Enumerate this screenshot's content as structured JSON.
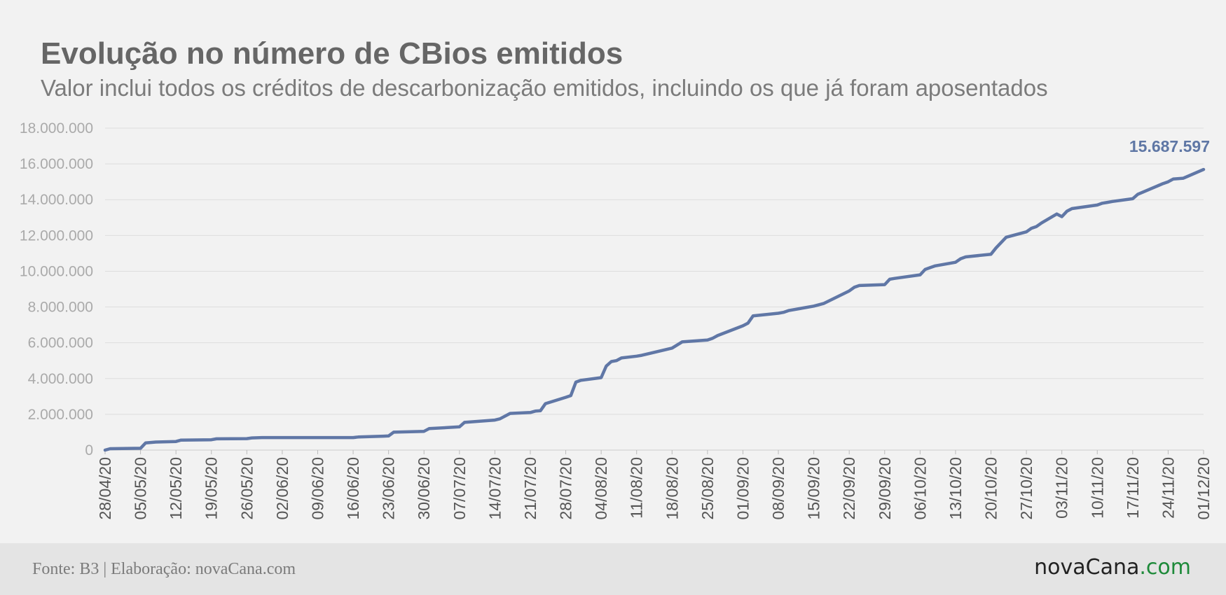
{
  "header": {
    "title": "Evolução no número de CBios emitidos",
    "subtitle": "Valor inclui todos os créditos de descarbonização emitidos, incluindo os que já foram aposentados"
  },
  "footer": {
    "source": "Fonte: B3 | Elaboração: novaCana.com",
    "logo_main": "novaCana",
    "logo_suffix": ".com"
  },
  "chart_data": {
    "type": "line",
    "title": "Evolução no número de CBios emitidos",
    "subtitle": "Valor inclui todos os créditos de descarbonização emitidos, incluindo os que já foram aposentados",
    "xlabel": "",
    "ylabel": "",
    "ylim": [
      0,
      18000000
    ],
    "yticks": [
      "0",
      "2.000.000",
      "4.000.000",
      "6.000.000",
      "8.000.000",
      "10.000.000",
      "12.000.000",
      "14.000.000",
      "16.000.000",
      "18.000.000"
    ],
    "xticks": [
      "28/04/20",
      "05/05/20",
      "12/05/20",
      "19/05/20",
      "26/05/20",
      "02/06/20",
      "09/06/20",
      "16/06/20",
      "23/06/20",
      "30/06/20",
      "07/07/20",
      "14/07/20",
      "21/07/20",
      "28/07/20",
      "04/08/20",
      "11/08/20",
      "18/08/20",
      "25/08/20",
      "01/09/20",
      "08/09/20",
      "15/09/20",
      "22/09/20",
      "29/09/20",
      "06/10/20",
      "13/10/20",
      "20/10/20",
      "27/10/20",
      "03/11/20",
      "10/11/20",
      "17/11/20",
      "24/11/20",
      "01/12/20"
    ],
    "grid": true,
    "line_color": "#6077a6",
    "end_label": "15.687.597",
    "series": [
      {
        "x": [
          "28/04/20",
          "29/04/20",
          "05/05/20",
          "06/05/20",
          "08/05/20",
          "12/05/20",
          "13/05/20",
          "19/05/20",
          "20/05/20",
          "26/05/20",
          "27/05/20",
          "29/05/20",
          "16/06/20",
          "17/06/20",
          "22/06/20",
          "23/06/20",
          "24/06/20",
          "30/06/20",
          "01/07/20",
          "07/07/20",
          "08/07/20",
          "14/07/20",
          "15/07/20",
          "17/07/20",
          "21/07/20",
          "22/07/20",
          "23/07/20",
          "24/07/20",
          "28/07/20",
          "29/07/20",
          "30/07/20",
          "31/07/20",
          "04/08/20",
          "05/08/20",
          "06/08/20",
          "07/08/20",
          "08/08/20",
          "11/08/20",
          "12/08/20",
          "18/08/20",
          "20/08/20",
          "25/08/20",
          "26/08/20",
          "27/08/20",
          "01/09/20",
          "02/09/20",
          "03/09/20",
          "08/09/20",
          "09/09/20",
          "10/09/20",
          "15/09/20",
          "17/09/20",
          "22/09/20",
          "23/09/20",
          "24/09/20",
          "29/09/20",
          "30/09/20",
          "01/10/20",
          "06/10/20",
          "07/10/20",
          "08/10/20",
          "09/10/20",
          "13/10/20",
          "14/10/20",
          "15/10/20",
          "20/10/20",
          "21/10/20",
          "23/10/20",
          "27/10/20",
          "28/10/20",
          "29/10/20",
          "30/10/20",
          "02/11/20",
          "03/11/20",
          "04/11/20",
          "05/11/20",
          "10/11/20",
          "11/11/20",
          "12/11/20",
          "13/11/20",
          "17/11/20",
          "18/11/20",
          "23/11/20",
          "24/11/20",
          "25/11/20",
          "27/11/20",
          "01/12/20"
        ],
        "values": [
          0,
          80000,
          100000,
          400000,
          450000,
          480000,
          560000,
          580000,
          630000,
          640000,
          680000,
          700000,
          700000,
          730000,
          780000,
          790000,
          1000000,
          1050000,
          1200000,
          1300000,
          1550000,
          1680000,
          1750000,
          2050000,
          2100000,
          2180000,
          2200000,
          2600000,
          2950000,
          3050000,
          3800000,
          3900000,
          4050000,
          4700000,
          4950000,
          5000000,
          5150000,
          5250000,
          5300000,
          5700000,
          6050000,
          6150000,
          6250000,
          6400000,
          6950000,
          7100000,
          7500000,
          7650000,
          7700000,
          7800000,
          8050000,
          8200000,
          8900000,
          9100000,
          9200000,
          9250000,
          9550000,
          9600000,
          9800000,
          10100000,
          10200000,
          10300000,
          10500000,
          10700000,
          10800000,
          10950000,
          11300000,
          11900000,
          12200000,
          12400000,
          12500000,
          12700000,
          13200000,
          13050000,
          13350000,
          13500000,
          13700000,
          13800000,
          13850000,
          13900000,
          14050000,
          14300000,
          14900000,
          15000000,
          15150000,
          15200000,
          15687597
        ]
      }
    ]
  }
}
